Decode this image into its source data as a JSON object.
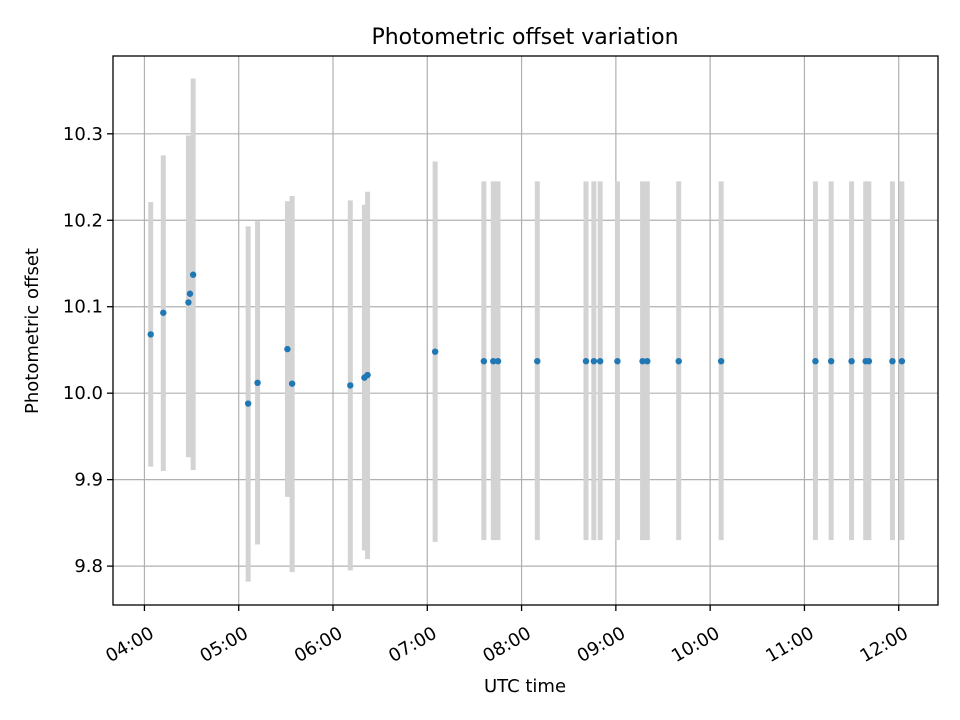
{
  "chart_data": {
    "type": "scatter",
    "title": "Photometric offset variation",
    "xlabel": "UTC time",
    "ylabel": "Photometric offset",
    "xlim": [
      "03:40",
      "12:25"
    ],
    "ylim": [
      9.755,
      10.39
    ],
    "grid": true,
    "x_ticks": [
      "04:00",
      "05:00",
      "06:00",
      "07:00",
      "08:00",
      "09:00",
      "10:00",
      "11:00",
      "12:00"
    ],
    "y_ticks": [
      "9.8",
      "9.9",
      "10.0",
      "10.1",
      "10.2",
      "10.3"
    ],
    "y_tick_values": [
      9.8,
      9.9,
      10.0,
      10.1,
      10.2,
      10.3
    ],
    "colors": {
      "point": "#1f77b4",
      "errorbar": "#d3d3d3"
    },
    "points": [
      {
        "x": "04:04",
        "y": 10.068,
        "lo": 9.915,
        "hi": 10.221
      },
      {
        "x": "04:12",
        "y": 10.093,
        "lo": 9.91,
        "hi": 10.275
      },
      {
        "x": "04:28",
        "y": 10.105,
        "lo": 9.926,
        "hi": 10.298
      },
      {
        "x": "04:29",
        "y": 10.115,
        "lo": 9.926,
        "hi": 10.298
      },
      {
        "x": "04:31",
        "y": 10.137,
        "lo": 9.911,
        "hi": 10.364
      },
      {
        "x": "05:06",
        "y": 9.988,
        "lo": 9.782,
        "hi": 10.193
      },
      {
        "x": "05:12",
        "y": 10.012,
        "lo": 9.825,
        "hi": 10.199
      },
      {
        "x": "05:31",
        "y": 10.051,
        "lo": 9.88,
        "hi": 10.222
      },
      {
        "x": "05:34",
        "y": 10.011,
        "lo": 9.793,
        "hi": 10.228
      },
      {
        "x": "06:11",
        "y": 10.009,
        "lo": 9.795,
        "hi": 10.223
      },
      {
        "x": "06:20",
        "y": 10.018,
        "lo": 9.818,
        "hi": 10.218
      },
      {
        "x": "06:22",
        "y": 10.021,
        "lo": 9.808,
        "hi": 10.233
      },
      {
        "x": "07:05",
        "y": 10.048,
        "lo": 9.828,
        "hi": 10.268
      },
      {
        "x": "07:36",
        "y": 10.037,
        "lo": 9.83,
        "hi": 10.245
      },
      {
        "x": "07:42",
        "y": 10.037,
        "lo": 9.83,
        "hi": 10.245
      },
      {
        "x": "07:45",
        "y": 10.037,
        "lo": 9.83,
        "hi": 10.245
      },
      {
        "x": "08:10",
        "y": 10.037,
        "lo": 9.83,
        "hi": 10.245
      },
      {
        "x": "08:41",
        "y": 10.037,
        "lo": 9.83,
        "hi": 10.245
      },
      {
        "x": "08:46",
        "y": 10.037,
        "lo": 9.83,
        "hi": 10.245
      },
      {
        "x": "08:50",
        "y": 10.037,
        "lo": 9.83,
        "hi": 10.245
      },
      {
        "x": "09:01",
        "y": 10.037,
        "lo": 9.83,
        "hi": 10.245
      },
      {
        "x": "09:17",
        "y": 10.037,
        "lo": 9.83,
        "hi": 10.245
      },
      {
        "x": "09:20",
        "y": 10.037,
        "lo": 9.83,
        "hi": 10.245
      },
      {
        "x": "09:40",
        "y": 10.037,
        "lo": 9.83,
        "hi": 10.245
      },
      {
        "x": "10:07",
        "y": 10.037,
        "lo": 9.83,
        "hi": 10.245
      },
      {
        "x": "11:07",
        "y": 10.037,
        "lo": 9.83,
        "hi": 10.245
      },
      {
        "x": "11:17",
        "y": 10.037,
        "lo": 9.83,
        "hi": 10.245
      },
      {
        "x": "11:30",
        "y": 10.037,
        "lo": 9.83,
        "hi": 10.245
      },
      {
        "x": "11:39",
        "y": 10.037,
        "lo": 9.83,
        "hi": 10.245
      },
      {
        "x": "11:41",
        "y": 10.037,
        "lo": 9.83,
        "hi": 10.245
      },
      {
        "x": "11:56",
        "y": 10.037,
        "lo": 9.83,
        "hi": 10.245
      },
      {
        "x": "12:02",
        "y": 10.037,
        "lo": 9.83,
        "hi": 10.245
      }
    ]
  }
}
